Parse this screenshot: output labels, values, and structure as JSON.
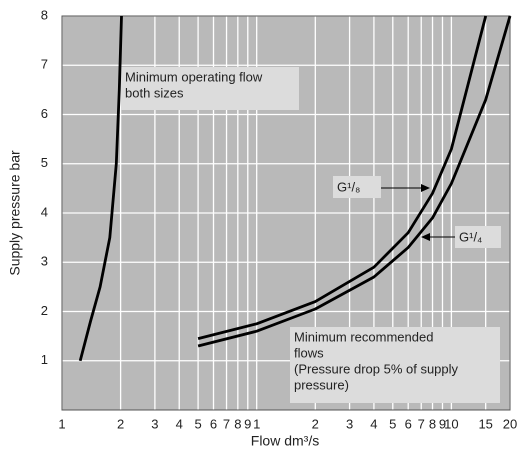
{
  "chart_data": {
    "type": "line",
    "x_label": "Flow dm³/s",
    "y_label": "Supply pressure bar",
    "log_x": true,
    "grid": true,
    "xlim": [
      1,
      200
    ],
    "ylim": [
      0,
      8
    ],
    "xticks": [
      1,
      2,
      3,
      4,
      5,
      6,
      7,
      8,
      9,
      {
        "value": 10,
        "label": "1"
      },
      {
        "value": 20,
        "label": "2"
      },
      {
        "value": 30,
        "label": "3"
      },
      {
        "value": 40,
        "label": "4"
      },
      {
        "value": 50,
        "label": "5"
      },
      {
        "value": 60,
        "label": "6"
      },
      {
        "value": 70,
        "label": "7"
      },
      {
        "value": 80,
        "label": "8"
      },
      {
        "value": 90,
        "label": "9"
      },
      {
        "value": 100,
        "label": "10"
      },
      {
        "value": 150,
        "label": "15"
      },
      {
        "value": 200,
        "label": "20"
      }
    ],
    "yticks": [
      1,
      2,
      3,
      4,
      5,
      6,
      7,
      8
    ],
    "series": [
      {
        "name": "Minimum operating flow both sizes",
        "color": "#000000",
        "x": [
          1.24,
          1.4,
          1.57,
          1.76,
          1.9,
          1.97,
          2.02
        ],
        "values": [
          1,
          1.8,
          2.5,
          3.5,
          5,
          6.5,
          8
        ]
      },
      {
        "name": "G¹/₈",
        "color": "#000000",
        "x": [
          5,
          10,
          20,
          40,
          60,
          80,
          100,
          150
        ],
        "values": [
          1.45,
          1.75,
          2.2,
          2.9,
          3.6,
          4.4,
          5.3,
          8
        ]
      },
      {
        "name": "G¹/₄",
        "color": "#000000",
        "x": [
          5,
          10,
          20,
          40,
          60,
          80,
          100,
          150,
          200
        ],
        "values": [
          1.3,
          1.6,
          2.05,
          2.7,
          3.3,
          3.9,
          4.6,
          6.3,
          8
        ]
      }
    ],
    "annotations": [
      {
        "lines": [
          "Minimum operating flow",
          "both sizes"
        ]
      },
      {
        "lines": [
          "Minimum recommended",
          "flows",
          "(Pressure drop 5% of supply",
          "pressure)"
        ]
      }
    ]
  }
}
